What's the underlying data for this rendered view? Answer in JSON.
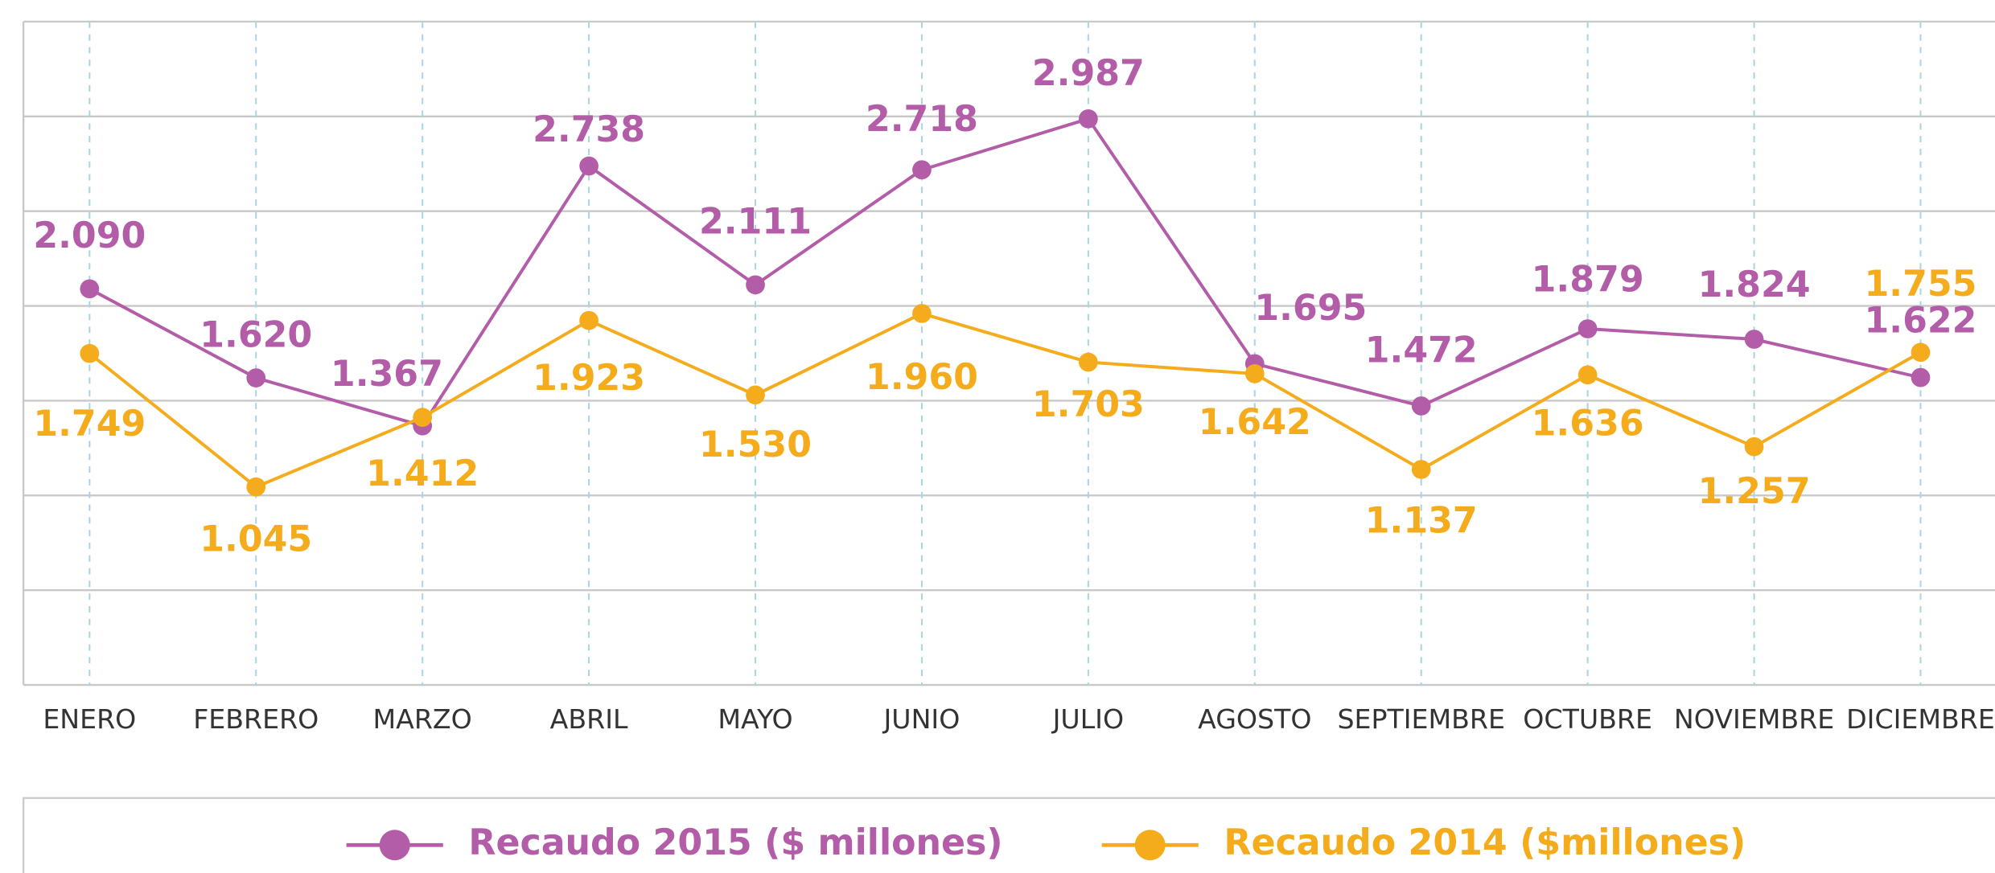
{
  "chart_data": {
    "type": "line",
    "categories": [
      "ENERO",
      "FEBRERO",
      "MARZO",
      "ABRIL",
      "MAYO",
      "JUNIO",
      "JULIO",
      "AGOSTO",
      "SEPTIEMBRE",
      "OCTUBRE",
      "NOVIEMBRE",
      "DICIEMBRE"
    ],
    "series": [
      {
        "name": "Recaudo 2015 ($ millones)",
        "color": "#b35ca7",
        "values": [
          2090,
          1620,
          1367,
          2738,
          2111,
          2718,
          2987,
          1695,
          1472,
          1879,
          1824,
          1622
        ],
        "value_labels": [
          "2.090",
          "1.620",
          "1.367",
          "2.738",
          "2.111",
          "2.718",
          "2.987",
          "1.695",
          "1.472",
          "1.879",
          "1.824",
          "1.622"
        ]
      },
      {
        "name": "Recaudo 2014 ($millones)",
        "color": "#f5ac1c",
        "values": [
          1749,
          1045,
          1412,
          1923,
          1530,
          1960,
          1703,
          1642,
          1137,
          1636,
          1257,
          1755
        ],
        "value_labels": [
          "1.749",
          "1.045",
          "1.412",
          "1.923",
          "1.530",
          "1.960",
          "1.703",
          "1.642",
          "1.137",
          "1.636",
          "1.257",
          "1.755"
        ]
      }
    ],
    "ylim": [
      0,
      3500
    ],
    "yticks": [
      0,
      500,
      1000,
      1500,
      2000,
      2500,
      3000,
      3500
    ],
    "grid": true,
    "legend": "bottom"
  }
}
